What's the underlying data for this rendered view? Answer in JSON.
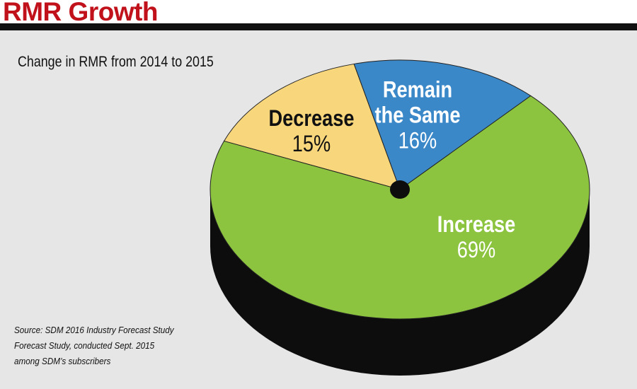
{
  "chart_data": {
    "type": "pie3d",
    "title": "RMR Growth",
    "subtitle": "Change in RMR from 2014 to 2015",
    "categories": [
      "Decrease",
      "Remain the Same",
      "Increase"
    ],
    "values": [
      15,
      16,
      69
    ],
    "value_labels": [
      "15%",
      "16%",
      "69%"
    ],
    "colors": [
      "#f8d67b",
      "#3b88c9",
      "#8dc43f"
    ],
    "label_colors": [
      "#111111",
      "#ffffff",
      "#ffffff"
    ],
    "source": [
      "Source: SDM 2016 Industry Forecast Study",
      "Forecast Study, conducted Sept. 2015",
      "among SDM’s subscribers"
    ]
  }
}
